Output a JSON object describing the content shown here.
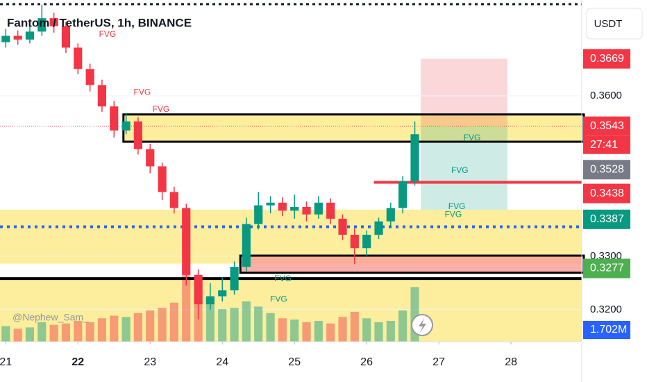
{
  "chart_data": {
    "type": "candlestick",
    "title": "Fantom / TetherUS, 1h, BINANCE",
    "currency": "USDT",
    "watermark": "@Nephew_Sam_",
    "x": [
      21.0,
      21.167,
      21.333,
      21.5,
      21.667,
      21.833,
      22.0,
      22.167,
      22.333,
      22.5,
      22.667,
      22.833,
      23.0,
      23.167,
      23.333,
      23.5,
      23.667,
      23.833,
      24.0,
      24.167,
      24.333,
      24.5,
      24.667,
      24.833,
      25.0,
      25.167,
      25.333,
      25.5,
      25.667,
      25.833,
      26.0,
      26.167,
      26.333,
      26.5,
      26.667
    ],
    "open": [
      0.37,
      0.3712,
      0.3705,
      0.372,
      0.3745,
      0.373,
      0.369,
      0.365,
      0.362,
      0.358,
      0.3535,
      0.3552,
      0.35,
      0.3468,
      0.342,
      0.339,
      0.3265,
      0.321,
      0.3225,
      0.3236,
      0.328,
      0.336,
      0.3395,
      0.34,
      0.3385,
      0.3392,
      0.3378,
      0.34,
      0.337,
      0.334,
      0.3315,
      0.334,
      0.3365,
      0.339,
      0.344
    ],
    "high": [
      0.3725,
      0.3722,
      0.3735,
      0.377,
      0.3755,
      0.3738,
      0.3698,
      0.366,
      0.363,
      0.359,
      0.3568,
      0.356,
      0.351,
      0.3475,
      0.343,
      0.3398,
      0.3275,
      0.325,
      0.326,
      0.329,
      0.3372,
      0.342,
      0.3412,
      0.341,
      0.3415,
      0.3402,
      0.3412,
      0.3408,
      0.3378,
      0.3352,
      0.3348,
      0.3372,
      0.34,
      0.345,
      0.3552
    ],
    "low": [
      0.369,
      0.3695,
      0.3698,
      0.3712,
      0.3718,
      0.368,
      0.364,
      0.3608,
      0.357,
      0.3522,
      0.3528,
      0.349,
      0.3455,
      0.3405,
      0.338,
      0.3245,
      0.3182,
      0.32,
      0.3215,
      0.3228,
      0.3272,
      0.335,
      0.338,
      0.3375,
      0.337,
      0.3365,
      0.337,
      0.336,
      0.333,
      0.3285,
      0.33,
      0.3332,
      0.3355,
      0.338,
      0.3432
    ],
    "close": [
      0.3712,
      0.3705,
      0.372,
      0.3745,
      0.373,
      0.369,
      0.365,
      0.362,
      0.358,
      0.3535,
      0.3552,
      0.35,
      0.3468,
      0.342,
      0.339,
      0.3265,
      0.321,
      0.3225,
      0.3236,
      0.328,
      0.336,
      0.3395,
      0.34,
      0.3385,
      0.3392,
      0.3378,
      0.34,
      0.337,
      0.334,
      0.3315,
      0.334,
      0.3365,
      0.339,
      0.344,
      0.3528
    ],
    "volume": [
      1.2,
      1.0,
      1.1,
      1.5,
      1.3,
      1.4,
      1.6,
      1.5,
      1.8,
      2.0,
      1.9,
      2.2,
      2.4,
      2.6,
      3.0,
      5.5,
      4.8,
      3.2,
      2.5,
      2.6,
      3.1,
      2.7,
      2.2,
      1.8,
      1.7,
      1.5,
      1.6,
      1.4,
      1.9,
      2.3,
      1.8,
      1.5,
      1.6,
      2.4,
      4.2
    ],
    "volume_lim": [
      0,
      8
    ],
    "volume_label": "1.702M",
    "up_color": "#089981",
    "down_color": "#f23645",
    "xlim": [
      20.92,
      28.98
    ],
    "ylim": [
      0.314,
      0.3779
    ],
    "xticks": [
      21,
      22,
      23,
      24,
      25,
      26,
      27,
      28
    ],
    "yticks": [
      {
        "value": 0.32,
        "label": "0.3200"
      },
      {
        "value": 0.33,
        "label": "0.3300"
      },
      {
        "value": 0.36,
        "label": "0.3600"
      }
    ],
    "zones": [
      {
        "from": 0.3387,
        "to": 0.3286,
        "x": 20.92,
        "color": "#fbeb8c"
      },
      {
        "from": 0.3258,
        "to": 0.314,
        "x": 20.92,
        "color": "#fbeb8c"
      },
      {
        "from": 0.3565,
        "to": 0.3514,
        "x": 22.63,
        "color": "#fbeb8c"
      },
      {
        "from": 0.3301,
        "to": 0.3269,
        "x": 24.25,
        "color": "#f7a29a"
      }
    ],
    "boxes": [
      {
        "from": 0.3565,
        "to": 0.3514,
        "x": 22.63
      },
      {
        "from": 0.3301,
        "to": 0.3269,
        "x": 24.25
      }
    ],
    "position": {
      "x": [
        26.75,
        27.95
      ],
      "target": 0.3669,
      "entry": 0.3543,
      "stop": 0.3387
    },
    "lines": [
      {
        "value": 0.3438,
        "x": 26.1,
        "color": "#f23645",
        "style": "solid"
      },
      {
        "value": 0.3355,
        "x": 20.92,
        "color": "#2962ff",
        "style": "dotted"
      },
      {
        "value": 0.3258,
        "x": 20.92,
        "color": "#000000",
        "style": "solid"
      },
      {
        "value": 0.3543,
        "x": 20.92,
        "color": "#f23645",
        "style": "fine"
      }
    ],
    "annotations": [
      {
        "text": "FVG",
        "x": 22.41,
        "price": 0.3714,
        "color": "#f23645"
      },
      {
        "text": "FVG",
        "x": 22.89,
        "price": 0.3606,
        "color": "#f23645"
      },
      {
        "text": "FVG",
        "x": 23.15,
        "price": 0.3574,
        "color": "#f23645"
      },
      {
        "text": "FVG",
        "x": 27.46,
        "price": 0.3521,
        "color": "#089981"
      },
      {
        "text": "FVG",
        "x": 27.29,
        "price": 0.346,
        "color": "#089981"
      },
      {
        "text": "FVG",
        "x": 27.25,
        "price": 0.3392,
        "color": "#089981"
      },
      {
        "text": "FVG",
        "x": 27.2,
        "price": 0.3377,
        "color": "#089981"
      },
      {
        "text": "FVG",
        "x": 24.84,
        "price": 0.3257,
        "color": "#089981"
      },
      {
        "text": "FVG",
        "x": 24.78,
        "price": 0.3219,
        "color": "#089981"
      }
    ],
    "price_labels": [
      {
        "value": 0.3669,
        "label": "0.3669",
        "color": "#f23645"
      },
      {
        "value": 0.3543,
        "label": "0.3543",
        "color": "#f23645"
      },
      {
        "value": 0.3528,
        "label": "0.3528",
        "color": "#787b86"
      },
      {
        "value": 0.3438,
        "label": "0.3438",
        "color": "#f23645"
      },
      {
        "value": 0.3387,
        "label": "0.3387",
        "color": "#089981"
      },
      {
        "value": 0.3277,
        "label": "0.3277",
        "color": "#4caf50"
      }
    ],
    "countdown": "27:41"
  }
}
